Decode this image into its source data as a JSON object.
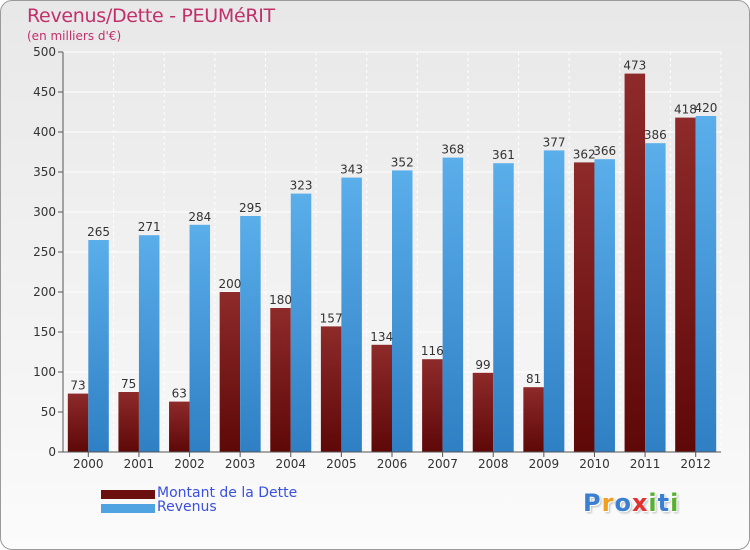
{
  "title": "Revenus/Dette - PEUMéRIT",
  "subtitle": "(en milliers d'€)",
  "chart_data": {
    "type": "bar",
    "title": "Revenus/Dette - PEUMéRIT",
    "ylabel": "(en milliers d'€)",
    "xlabel": "",
    "categories": [
      "2000",
      "2001",
      "2002",
      "2003",
      "2004",
      "2005",
      "2006",
      "2007",
      "2008",
      "2009",
      "2010",
      "2011",
      "2012"
    ],
    "series": [
      {
        "name": "Montant de la Dette",
        "color": "#7a1c1c",
        "values": [
          73,
          75,
          63,
          200,
          180,
          157,
          134,
          116,
          99,
          81,
          362,
          473,
          418
        ]
      },
      {
        "name": "Revenus",
        "color": "#4fa3e0",
        "values": [
          265,
          271,
          284,
          295,
          323,
          343,
          352,
          368,
          361,
          377,
          366,
          386,
          420
        ]
      }
    ],
    "ylim": [
      0,
      500
    ],
    "yticks": [
      0,
      50,
      100,
      150,
      200,
      250,
      300,
      350,
      400,
      450,
      500
    ],
    "grid": true,
    "legend_position": "bottom-left"
  },
  "legend": {
    "items": [
      {
        "label": "Montant de la Dette",
        "color": "#6b0f0f"
      },
      {
        "label": "Revenus",
        "color": "#4fa3e0"
      }
    ]
  },
  "logo": {
    "text": "Proxiti",
    "letters": [
      "P",
      "r",
      "o",
      "x",
      "i",
      "t",
      "i"
    ],
    "colors": [
      "#3a7fd0",
      "#f0a020",
      "#3a7fd0",
      "#e03030",
      "#58b030",
      "#3a7fd0",
      "#58b030"
    ]
  }
}
